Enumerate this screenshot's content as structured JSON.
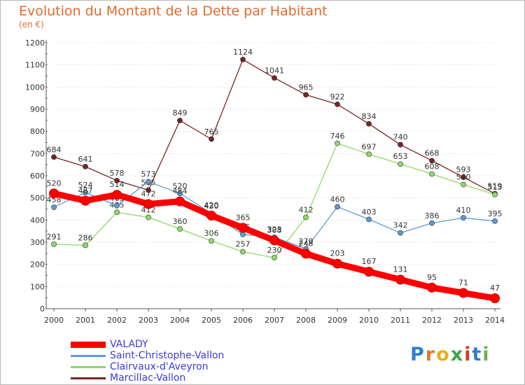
{
  "header": {
    "title": "Evolution du Montant de la Dette par Habitant",
    "subtitle": "(en €)"
  },
  "logo": {
    "letters": [
      "P",
      "r",
      "o",
      "x",
      "i",
      "t",
      "i"
    ],
    "colors": [
      "#2d7fd0",
      "#e07a2a",
      "#e8b020",
      "#3aa545",
      "#d43a2a",
      "#2d7fd0",
      "#6ab04a"
    ]
  },
  "chart_data": {
    "type": "line",
    "title": "Evolution du Montant de la Dette par Habitant",
    "ylabel": "(en €)",
    "ylim": [
      0,
      1200
    ],
    "yticks": [
      0,
      100,
      200,
      300,
      400,
      500,
      600,
      700,
      800,
      900,
      1000,
      1100,
      1200
    ],
    "categories": [
      "2000",
      "2001",
      "2002",
      "2003",
      "2004",
      "2005",
      "2006",
      "2007",
      "2008",
      "2009",
      "2010",
      "2011",
      "2012",
      "2013",
      "2014"
    ],
    "grid": "horizontal dotted",
    "legend": "bottom-left",
    "series": [
      {
        "name": "VALADY",
        "color": "#ff0000",
        "values": [
          520,
          487,
          514,
          472,
          484,
          420,
          365,
          308,
          248,
          203,
          167,
          131,
          95,
          71,
          47
        ]
      },
      {
        "name": "Saint-Christophe-Vallon",
        "color": "#5b9bd5",
        "values": [
          458,
          524,
          465,
          573,
          520,
          430,
          335,
          323,
          270,
          460,
          403,
          342,
          386,
          410,
          395
        ]
      },
      {
        "name": "Clairvaux-d'Aveyron",
        "color": "#8fd96a",
        "values": [
          291,
          286,
          435,
          412,
          360,
          306,
          257,
          230,
          412,
          746,
          697,
          653,
          608,
          560,
          515
        ]
      },
      {
        "name": "Marcillac-Vallon",
        "color": "#7a2424",
        "values": [
          684,
          641,
          578,
          535,
          849,
          765,
          1124,
          1041,
          965,
          922,
          834,
          740,
          668,
          593,
          519
        ]
      }
    ]
  }
}
